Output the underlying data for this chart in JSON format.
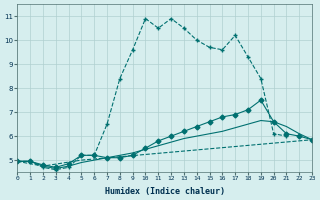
{
  "xlabel": "Humidex (Indice chaleur)",
  "ylabel": "",
  "xlim": [
    0,
    23
  ],
  "ylim": [
    4.5,
    11.5
  ],
  "xticks": [
    0,
    1,
    2,
    3,
    4,
    5,
    6,
    7,
    8,
    9,
    10,
    11,
    12,
    13,
    14,
    15,
    16,
    17,
    18,
    19,
    20,
    21,
    22,
    23
  ],
  "yticks": [
    5,
    6,
    7,
    8,
    9,
    10,
    11
  ],
  "bg_color": "#d6eeee",
  "grid_color": "#b0d0d0",
  "line_color": "#007070",
  "line1_x": [
    0,
    1,
    2,
    3,
    4,
    5,
    6,
    7,
    8,
    9,
    10,
    11,
    12,
    13,
    14,
    15,
    16,
    17,
    18,
    19,
    20,
    21,
    22,
    23
  ],
  "line1_y": [
    4.95,
    4.95,
    4.7,
    4.6,
    4.7,
    5.2,
    5.2,
    6.5,
    8.4,
    9.6,
    10.9,
    10.5,
    10.9,
    10.5,
    10.0,
    9.7,
    9.6,
    10.2,
    9.3,
    8.4,
    6.1,
    6.0,
    null,
    null
  ],
  "line2_x": [
    0,
    1,
    2,
    3,
    4,
    5,
    6,
    7,
    8,
    9,
    10,
    11,
    12,
    13,
    14,
    15,
    16,
    17,
    18,
    19,
    20,
    21,
    22,
    23
  ],
  "line2_y": [
    4.95,
    4.95,
    4.8,
    4.7,
    4.85,
    5.2,
    5.2,
    5.1,
    5.1,
    5.2,
    5.5,
    5.8,
    6.0,
    6.2,
    6.4,
    6.6,
    6.8,
    6.9,
    7.1,
    7.5,
    6.6,
    6.1,
    6.0,
    5.85
  ],
  "line3_x": [
    0,
    1,
    2,
    3,
    4,
    5,
    6,
    7,
    8,
    9,
    10,
    11,
    12,
    13,
    14,
    15,
    16,
    17,
    18,
    19,
    20,
    21,
    22,
    23
  ],
  "line3_y": [
    4.95,
    4.95,
    4.75,
    4.65,
    4.75,
    4.9,
    5.0,
    5.1,
    5.2,
    5.3,
    5.45,
    5.6,
    5.75,
    5.9,
    6.0,
    6.1,
    6.2,
    6.35,
    6.5,
    6.65,
    6.6,
    6.4,
    6.1,
    5.85
  ],
  "line4_x": [
    0,
    2,
    5,
    23
  ],
  "line4_y": [
    4.95,
    4.75,
    5.0,
    5.85
  ]
}
